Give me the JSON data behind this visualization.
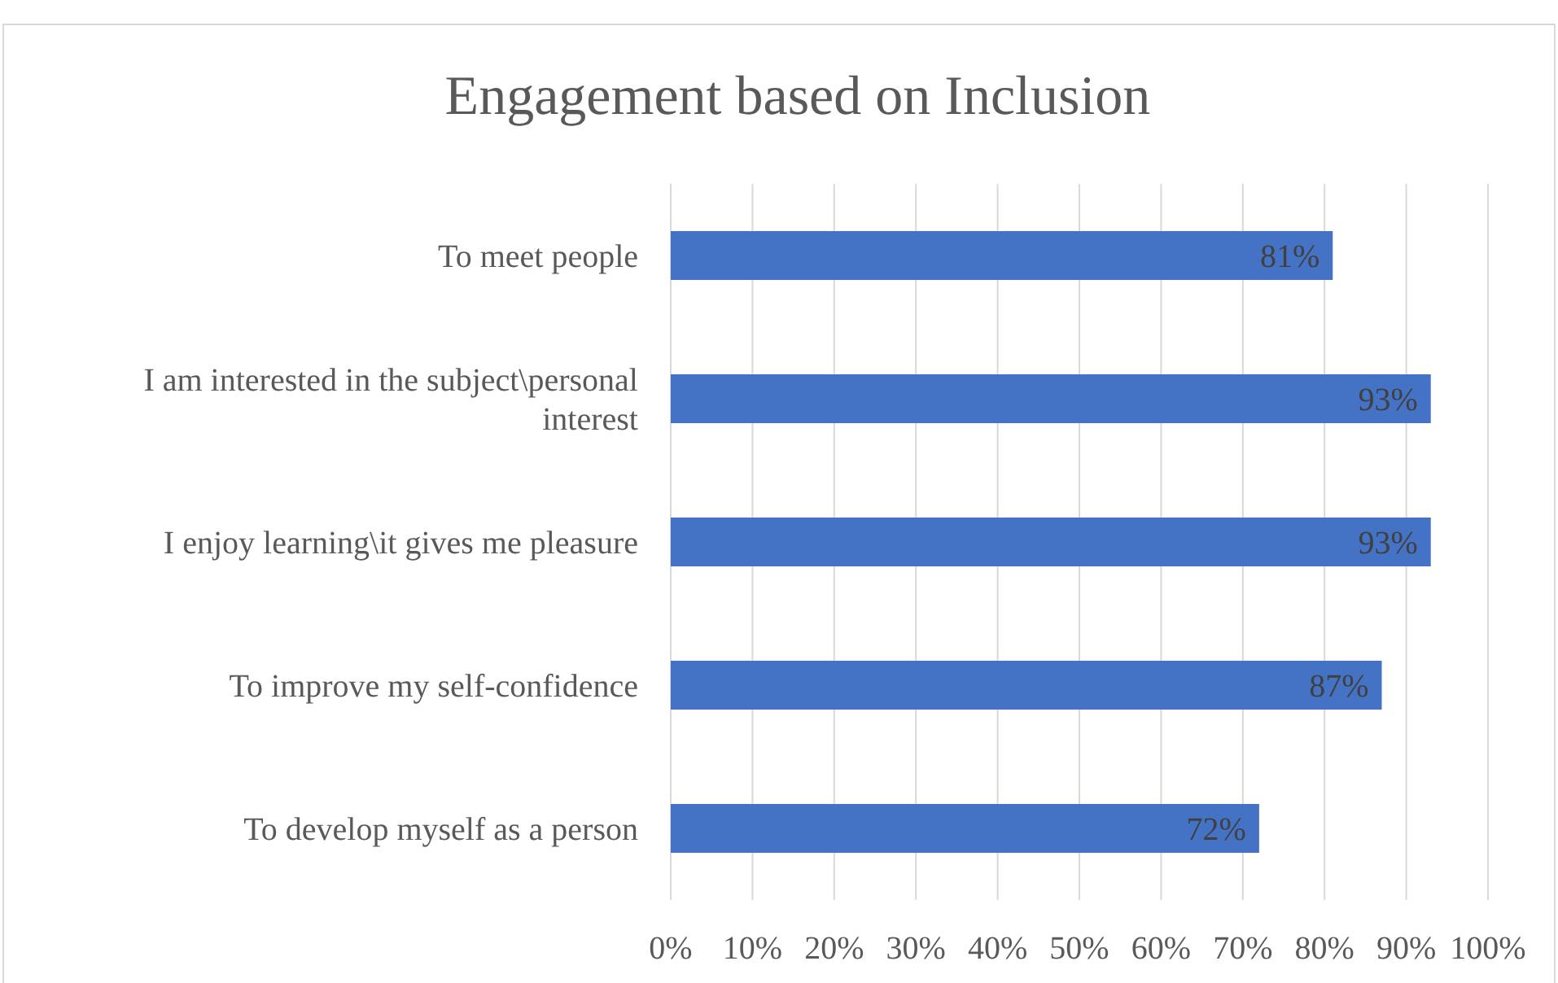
{
  "chart_data": {
    "type": "bar",
    "orientation": "horizontal",
    "title": "Engagement based on Inclusion",
    "categories": [
      "To meet people",
      "I am interested in the subject\\personal interest",
      "I enjoy learning\\it gives me pleasure",
      "To improve my self-confidence",
      "To develop myself as a person"
    ],
    "values": [
      81,
      93,
      93,
      87,
      72
    ],
    "value_labels": [
      "81%",
      "93%",
      "93%",
      "87%",
      "72%"
    ],
    "color": "#4472c4",
    "xlim": [
      0,
      100
    ],
    "xticks": [
      {
        "value": 0,
        "label": "0%"
      },
      {
        "value": 10,
        "label": "10%"
      },
      {
        "value": 20,
        "label": "20%"
      },
      {
        "value": 30,
        "label": "30%"
      },
      {
        "value": 40,
        "label": "40%"
      },
      {
        "value": 50,
        "label": "50%"
      },
      {
        "value": 60,
        "label": "60%"
      },
      {
        "value": 70,
        "label": "70%"
      },
      {
        "value": 80,
        "label": "80%"
      },
      {
        "value": 90,
        "label": "90%"
      },
      {
        "value": 100,
        "label": "100%"
      }
    ],
    "grid": "x"
  }
}
